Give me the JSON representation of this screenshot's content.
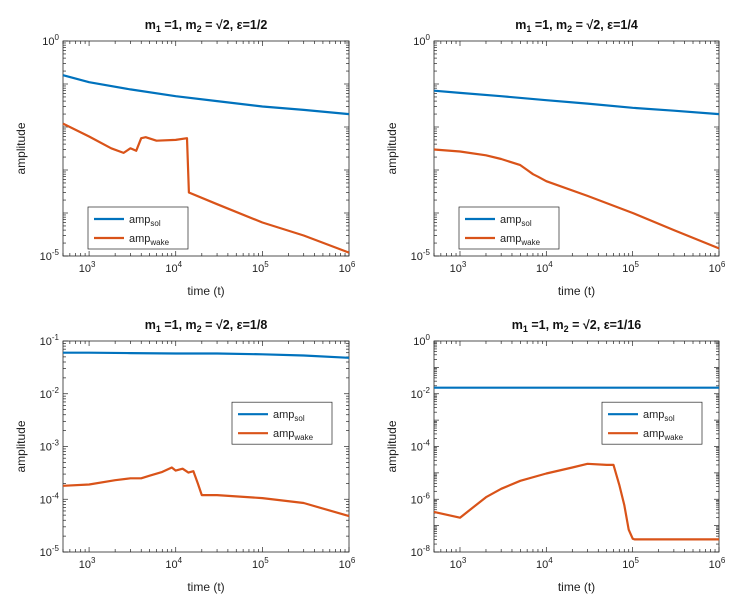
{
  "chart_data": [
    {
      "type": "line",
      "title": "m_1 =1, m_2 = √2, ε=1/2",
      "title_parts": {
        "m1": "m",
        "m1_sub": "1",
        "m1_val": " =1, ",
        "m2": "m",
        "m2_sub": "2",
        "m2_val": " = √2, ",
        "eps": "ε=1/2"
      },
      "xlabel": "time (t)",
      "ylabel": "amplitude",
      "xscale": "log",
      "yscale": "log",
      "xlim": [
        500,
        1000000
      ],
      "ylim": [
        1e-05,
        1
      ],
      "xticks": [
        {
          "exp": "3",
          "value": 1000
        },
        {
          "exp": "4",
          "value": 10000
        },
        {
          "exp": "5",
          "value": 100000
        },
        {
          "exp": "6",
          "value": 1000000
        }
      ],
      "yticks": [
        {
          "exp": "0",
          "value": 1
        },
        {
          "exp": "-5",
          "value": 1e-05
        }
      ],
      "legend_position": "bottom-left",
      "series": [
        {
          "name": "amp_sol",
          "base": "amp",
          "sub": "sol",
          "color": "#0072bd",
          "x": [
            500,
            1000,
            3000,
            10000,
            30000,
            100000,
            300000,
            1000000
          ],
          "y": [
            0.16,
            0.11,
            0.075,
            0.052,
            0.04,
            0.03,
            0.025,
            0.02
          ]
        },
        {
          "name": "amp_wake",
          "base": "amp",
          "sub": "wake",
          "color": "#d95319",
          "x": [
            500,
            1000,
            1800,
            2500,
            3000,
            3500,
            4000,
            4500,
            6000,
            10000,
            13500,
            14200,
            30000,
            100000,
            300000,
            1000000
          ],
          "y": [
            0.012,
            0.006,
            0.0032,
            0.0025,
            0.0032,
            0.0028,
            0.0055,
            0.0058,
            0.0048,
            0.005,
            0.0055,
            0.0003,
            0.00016,
            6e-05,
            3e-05,
            1.2e-05
          ]
        }
      ]
    },
    {
      "type": "line",
      "title": "m_1 =1, m_2 = √2, ε=1/4",
      "title_parts": {
        "m1": "m",
        "m1_sub": "1",
        "m1_val": " =1, ",
        "m2": "m",
        "m2_sub": "2",
        "m2_val": " = √2, ",
        "eps": "ε=1/4"
      },
      "xlabel": "time (t)",
      "ylabel": "amplitude",
      "xscale": "log",
      "yscale": "log",
      "xlim": [
        500,
        1000000
      ],
      "ylim": [
        1e-05,
        1
      ],
      "xticks": [
        {
          "exp": "3",
          "value": 1000
        },
        {
          "exp": "4",
          "value": 10000
        },
        {
          "exp": "5",
          "value": 100000
        },
        {
          "exp": "6",
          "value": 1000000
        }
      ],
      "yticks": [
        {
          "exp": "0",
          "value": 1
        },
        {
          "exp": "-5",
          "value": 1e-05
        }
      ],
      "legend_position": "bottom-left",
      "series": [
        {
          "name": "amp_sol",
          "base": "amp",
          "sub": "sol",
          "color": "#0072bd",
          "x": [
            500,
            1000,
            3000,
            10000,
            30000,
            100000,
            300000,
            1000000
          ],
          "y": [
            0.07,
            0.062,
            0.052,
            0.042,
            0.035,
            0.028,
            0.024,
            0.02
          ]
        },
        {
          "name": "amp_wake",
          "base": "amp",
          "sub": "wake",
          "color": "#d95319",
          "x": [
            500,
            1000,
            2000,
            3000,
            5000,
            6000,
            7000,
            8000,
            10000,
            30000,
            100000,
            300000,
            1000000
          ],
          "y": [
            0.003,
            0.0027,
            0.0022,
            0.0018,
            0.0013,
            0.001,
            0.0008,
            0.0007,
            0.00055,
            0.00025,
            0.0001,
            4e-05,
            1.5e-05
          ]
        }
      ]
    },
    {
      "type": "line",
      "title": "m_1 =1, m_2 = √2, ε=1/8",
      "title_parts": {
        "m1": "m",
        "m1_sub": "1",
        "m1_val": " =1, ",
        "m2": "m",
        "m2_sub": "2",
        "m2_val": " = √2, ",
        "eps": "ε=1/8"
      },
      "xlabel": "time (t)",
      "ylabel": "amplitude",
      "xscale": "log",
      "yscale": "log",
      "xlim": [
        500,
        1000000
      ],
      "ylim": [
        1e-05,
        0.1
      ],
      "xticks": [
        {
          "exp": "3",
          "value": 1000
        },
        {
          "exp": "4",
          "value": 10000
        },
        {
          "exp": "5",
          "value": 100000
        },
        {
          "exp": "6",
          "value": 1000000
        }
      ],
      "yticks": [
        {
          "exp": "-1",
          "value": 0.1
        },
        {
          "exp": "-2",
          "value": 0.01
        },
        {
          "exp": "-3",
          "value": 0.001
        },
        {
          "exp": "-4",
          "value": 0.0001
        },
        {
          "exp": "-5",
          "value": 1e-05
        }
      ],
      "legend_position": "center-right",
      "series": [
        {
          "name": "amp_sol",
          "base": "amp",
          "sub": "sol",
          "color": "#0072bd",
          "x": [
            500,
            1000,
            3000,
            10000,
            30000,
            100000,
            300000,
            1000000
          ],
          "y": [
            0.06,
            0.06,
            0.059,
            0.058,
            0.058,
            0.056,
            0.053,
            0.048
          ]
        },
        {
          "name": "amp_wake",
          "base": "amp",
          "sub": "wake",
          "color": "#d95319",
          "x": [
            500,
            1000,
            2000,
            3000,
            4000,
            5000,
            7000,
            9000,
            10000,
            12000,
            14000,
            16000,
            18000,
            20000,
            30000,
            100000,
            300000,
            1000000
          ],
          "y": [
            0.00018,
            0.00019,
            0.00023,
            0.00025,
            0.00025,
            0.00028,
            0.00033,
            0.0004,
            0.00035,
            0.00038,
            0.00032,
            0.00034,
            0.0002,
            0.00012,
            0.00012,
            0.000105,
            8.5e-05,
            4.8e-05
          ]
        }
      ]
    },
    {
      "type": "line",
      "title": "m_1 =1, m_2 = √2, ε=1/16",
      "title_parts": {
        "m1": "m",
        "m1_sub": "1",
        "m1_val": " =1, ",
        "m2": "m",
        "m2_sub": "2",
        "m2_val": " = √2, ",
        "eps": "ε=1/16"
      },
      "xlabel": "time (t)",
      "ylabel": "amplitude",
      "xscale": "log",
      "yscale": "log",
      "xlim": [
        500,
        1000000
      ],
      "ylim": [
        1e-08,
        1
      ],
      "xticks": [
        {
          "exp": "3",
          "value": 1000
        },
        {
          "exp": "4",
          "value": 10000
        },
        {
          "exp": "5",
          "value": 100000
        },
        {
          "exp": "6",
          "value": 1000000
        }
      ],
      "yticks": [
        {
          "exp": "0",
          "value": 1
        },
        {
          "exp": "-2",
          "value": 0.01
        },
        {
          "exp": "-4",
          "value": 0.0001
        },
        {
          "exp": "-6",
          "value": 1e-06
        },
        {
          "exp": "-8",
          "value": 1e-08
        }
      ],
      "legend_position": "center-right",
      "series": [
        {
          "name": "amp_sol",
          "base": "amp",
          "sub": "sol",
          "color": "#0072bd",
          "x": [
            500,
            1000,
            10000,
            100000,
            1000000
          ],
          "y": [
            0.017,
            0.017,
            0.017,
            0.017,
            0.017
          ]
        },
        {
          "name": "amp_wake",
          "base": "amp",
          "sub": "wake",
          "color": "#d95319",
          "x": [
            500,
            1000,
            2000,
            3000,
            5000,
            10000,
            20000,
            30000,
            50000,
            60000,
            70000,
            80000,
            90000,
            100000,
            105000,
            110000,
            300000,
            1000000
          ],
          "y": [
            3.3e-07,
            2e-07,
            1.2e-06,
            2.5e-06,
            5e-06,
            9.5e-06,
            1.6e-05,
            2.2e-05,
            2e-05,
            2e-05,
            3.5e-06,
            6e-07,
            7e-08,
            3.2e-08,
            3e-08,
            3e-08,
            3e-08,
            3e-08
          ]
        }
      ]
    }
  ]
}
